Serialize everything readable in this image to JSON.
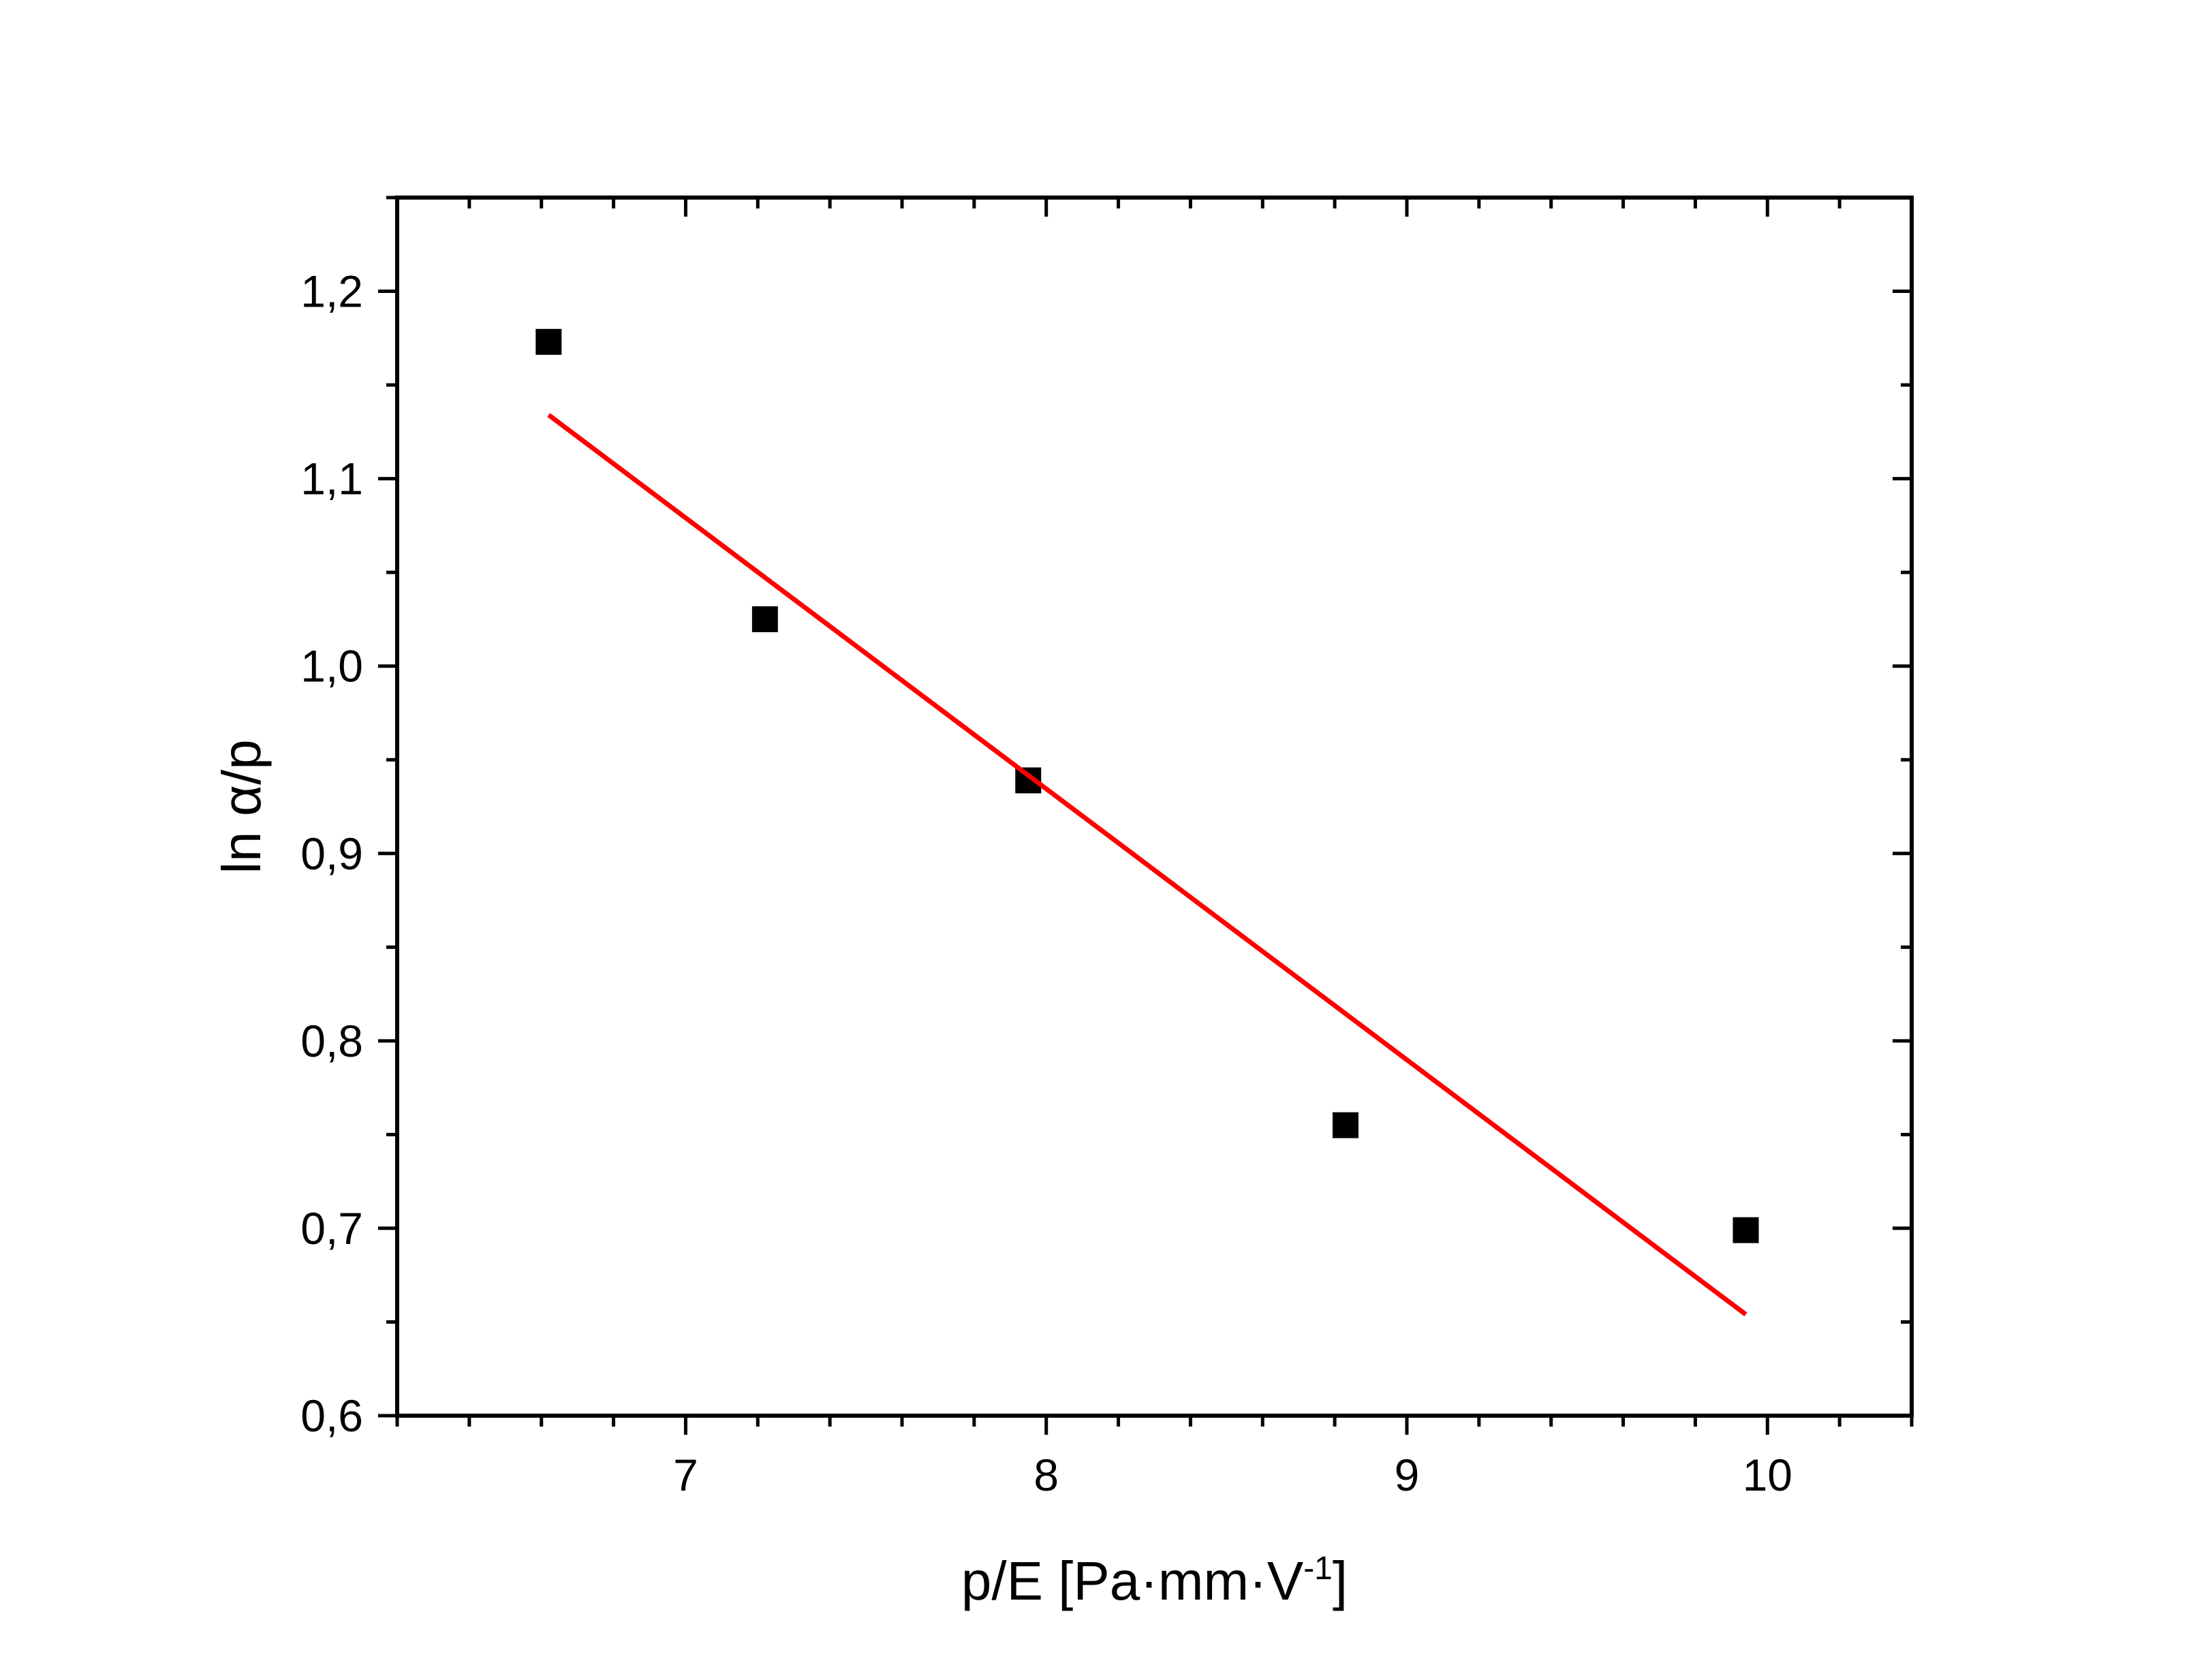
{
  "chart_data": {
    "type": "scatter",
    "title": "",
    "xlabel": "p/E [Pa·mm·V",
    "xlabel_superscript": "-1",
    "xlabel_suffix": "]",
    "ylabel": "ln α/p",
    "xlim": [
      6.2,
      10.4
    ],
    "ylim": [
      0.6,
      1.25
    ],
    "x_ticks": [
      7,
      8,
      9,
      10
    ],
    "x_tick_labels": [
      "7",
      "8",
      "9",
      "10"
    ],
    "y_ticks": [
      0.6,
      0.7,
      0.8,
      0.9,
      1.0,
      1.1,
      1.2
    ],
    "y_tick_labels": [
      "0,6",
      "0,7",
      "0,8",
      "0,9",
      "1,0",
      "1,1",
      "1,2"
    ],
    "grid": false,
    "legend": "none",
    "series": [
      {
        "marker": "square",
        "color": "#000000",
        "points": [
          {
            "x": 6.62,
            "y": 1.173
          },
          {
            "x": 7.22,
            "y": 1.025
          },
          {
            "x": 7.95,
            "y": 0.939
          },
          {
            "x": 8.83,
            "y": 0.755
          },
          {
            "x": 9.94,
            "y": 0.699
          }
        ]
      },
      {
        "type": "line",
        "color": "#ff0000",
        "points": [
          {
            "x": 6.62,
            "y": 1.134
          },
          {
            "x": 9.94,
            "y": 0.654
          }
        ]
      }
    ]
  }
}
